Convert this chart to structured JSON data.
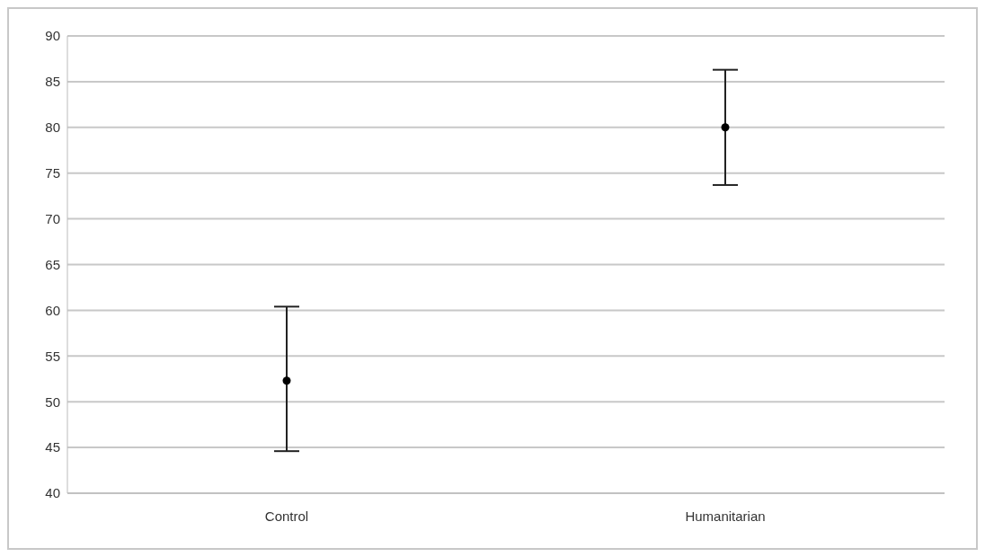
{
  "chart_data": {
    "type": "scatter",
    "categories": [
      "Control",
      "Humanitarian"
    ],
    "series": [
      {
        "color": "#000000",
        "values": [
          52.3,
          80
        ],
        "errors": [
          [
            44.6,
            60.4
          ],
          [
            73.7,
            86.3
          ]
        ]
      }
    ],
    "ylim": [
      40,
      90
    ],
    "yticks": [
      40,
      45,
      50,
      55,
      60,
      65,
      70,
      75,
      80,
      85,
      90
    ],
    "grid": "y",
    "marker": "circle",
    "legend": false
  }
}
